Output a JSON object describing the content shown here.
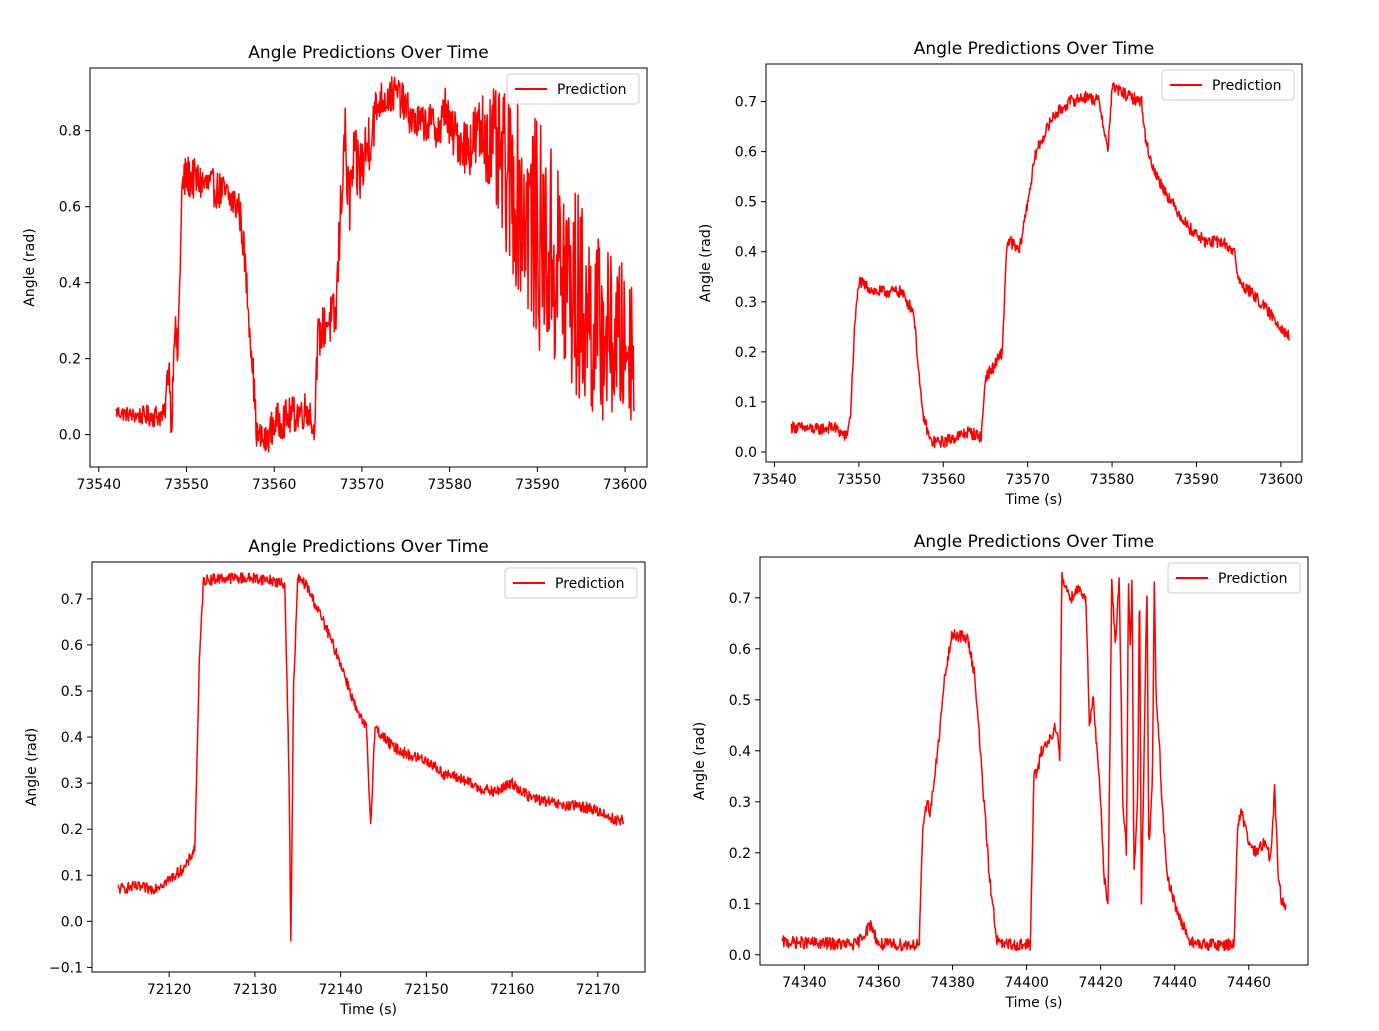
{
  "chart_data": [
    {
      "type": "line",
      "title": "Angle Predictions Over Time",
      "xlabel": "",
      "ylabel": "Angle (rad)",
      "xlim": [
        73539,
        73602.5
      ],
      "ylim": [
        -0.085,
        0.965
      ],
      "xticks": [
        73540,
        73550,
        73560,
        73570,
        73580,
        73590,
        73600
      ],
      "yticks": [
        0.0,
        0.2,
        0.4,
        0.6,
        0.8
      ],
      "ytick_decimals": 1,
      "legend": "top-right",
      "color": "#ff0000",
      "series": [
        {
          "name": "Prediction",
          "x": [
            73542,
            73544,
            73546,
            73547.5,
            73548,
            73548.3,
            73548.6,
            73549,
            73549.5,
            73550,
            73552,
            73554,
            73556,
            73556.5,
            73557.5,
            73558,
            73559,
            73560,
            73562,
            73564,
            73564.5,
            73565,
            73566,
            73567,
            73568,
            73568.5,
            73569,
            73570,
            73571,
            73572,
            73574,
            73576,
            73578,
            73579,
            73579.5,
            73580,
            73582,
            73584,
            73586,
            73588,
            73590,
            73592,
            73594,
            73596,
            73598,
            73600,
            73601
          ],
          "y": [
            0.06,
            0.05,
            0.05,
            0.05,
            0.2,
            0.0,
            0.3,
            0.2,
            0.65,
            0.68,
            0.66,
            0.64,
            0.6,
            0.5,
            0.2,
            0.0,
            -0.02,
            0.03,
            0.05,
            0.07,
            0.0,
            0.25,
            0.3,
            0.3,
            0.8,
            0.6,
            0.7,
            0.7,
            0.8,
            0.88,
            0.9,
            0.82,
            0.82,
            0.8,
            0.88,
            0.8,
            0.76,
            0.8,
            0.7,
            0.62,
            0.53,
            0.45,
            0.38,
            0.3,
            0.26,
            0.24,
            0.24
          ],
          "band": [
            0.02,
            0.02,
            0.03,
            0.03,
            0.05,
            0.04,
            0.06,
            0.05,
            0.06,
            0.06,
            0.05,
            0.05,
            0.05,
            0.05,
            0.05,
            0.04,
            0.04,
            0.05,
            0.05,
            0.05,
            0.04,
            0.06,
            0.06,
            0.08,
            0.1,
            0.1,
            0.1,
            0.1,
            0.09,
            0.05,
            0.05,
            0.05,
            0.05,
            0.06,
            0.06,
            0.06,
            0.08,
            0.12,
            0.2,
            0.26,
            0.3,
            0.3,
            0.3,
            0.26,
            0.23,
            0.21,
            0.2
          ]
        }
      ]
    },
    {
      "type": "line",
      "title": "Angle Predictions Over Time",
      "xlabel": "Time (s)",
      "ylabel": "Angle (rad)",
      "xlim": [
        73539,
        73602.5
      ],
      "ylim": [
        -0.02,
        0.775
      ],
      "xticks": [
        73540,
        73550,
        73560,
        73570,
        73580,
        73590,
        73600
      ],
      "yticks": [
        0.0,
        0.1,
        0.2,
        0.3,
        0.4,
        0.5,
        0.6,
        0.7
      ],
      "ytick_decimals": 1,
      "legend": "top-right",
      "color": "#ff0000",
      "series": [
        {
          "name": "Prediction",
          "x": [
            73542,
            73545,
            73547,
            73548.5,
            73549,
            73549.5,
            73550,
            73552,
            73555,
            73556.5,
            73557.5,
            73558.5,
            73560,
            73563,
            73564.5,
            73565,
            73566,
            73567,
            73567.5,
            73568,
            73569,
            73570,
            73571,
            73573,
            73575,
            73577,
            73578.5,
            73579.5,
            73580,
            73582,
            73583.5,
            73584,
            73585,
            73587,
            73589,
            73591,
            73593,
            73594.5,
            73595,
            73597,
            73599,
            73601
          ],
          "y": [
            0.05,
            0.045,
            0.05,
            0.03,
            0.07,
            0.25,
            0.34,
            0.32,
            0.32,
            0.28,
            0.08,
            0.02,
            0.02,
            0.04,
            0.03,
            0.15,
            0.17,
            0.2,
            0.41,
            0.42,
            0.4,
            0.5,
            0.6,
            0.67,
            0.7,
            0.71,
            0.7,
            0.6,
            0.73,
            0.71,
            0.7,
            0.62,
            0.56,
            0.5,
            0.45,
            0.42,
            0.42,
            0.4,
            0.34,
            0.31,
            0.27,
            0.23
          ]
        }
      ]
    },
    {
      "type": "line",
      "title": "Angle Predictions Over Time",
      "xlabel": "Time (s)",
      "ylabel": "Angle (rad)",
      "xlim": [
        72111,
        72175.5
      ],
      "ylim": [
        -0.11,
        0.78
      ],
      "xticks": [
        72120,
        72130,
        72140,
        72150,
        72160,
        72170
      ],
      "yticks": [
        -0.1,
        0.0,
        0.1,
        0.2,
        0.3,
        0.4,
        0.5,
        0.6,
        0.7
      ],
      "ytick_decimals": 1,
      "legend": "top-right",
      "color": "#ff0000",
      "series": [
        {
          "name": "Prediction",
          "x": [
            72114,
            72116,
            72118,
            72120,
            72122,
            72123,
            72123.5,
            72124,
            72126,
            72130,
            72132,
            72133.5,
            72134,
            72134.2,
            72134.5,
            72135,
            72136,
            72138,
            72140,
            72142,
            72143,
            72143.5,
            72144,
            72146,
            72148,
            72150,
            72152,
            72154,
            72156,
            72158,
            72160,
            72162,
            72164,
            72166,
            72168,
            72170,
            72172,
            72173
          ],
          "y": [
            0.07,
            0.075,
            0.07,
            0.09,
            0.12,
            0.16,
            0.55,
            0.74,
            0.745,
            0.745,
            0.74,
            0.73,
            0.3,
            -0.065,
            0.5,
            0.745,
            0.73,
            0.65,
            0.56,
            0.45,
            0.42,
            0.21,
            0.42,
            0.38,
            0.36,
            0.35,
            0.32,
            0.31,
            0.29,
            0.28,
            0.3,
            0.27,
            0.26,
            0.25,
            0.25,
            0.24,
            0.22,
            0.22
          ]
        }
      ]
    },
    {
      "type": "line",
      "title": "Angle Predictions Over Time",
      "xlabel": "Time (s)",
      "ylabel": "Angle (rad)",
      "xlim": [
        74328,
        74476
      ],
      "ylim": [
        -0.02,
        0.78
      ],
      "xticks": [
        74340,
        74360,
        74380,
        74400,
        74420,
        74440,
        74460
      ],
      "yticks": [
        0.0,
        0.1,
        0.2,
        0.3,
        0.4,
        0.5,
        0.6,
        0.7
      ],
      "ytick_decimals": 1,
      "legend": "top-right",
      "color": "#ff0000",
      "series": [
        {
          "name": "Prediction",
          "x": [
            74334,
            74354,
            74356,
            74358,
            74360,
            74371,
            74372,
            74373,
            74374,
            74376,
            74378,
            74380,
            74384,
            74386,
            74388,
            74390,
            74392,
            74393,
            74401,
            74402,
            74403,
            74404,
            74406,
            74408,
            74409,
            74409.5,
            74410,
            74412,
            74414,
            74416,
            74416.5,
            74417,
            74418,
            74420,
            74421,
            74422,
            74422.5,
            74423,
            74424,
            74425,
            74426,
            74427,
            74427.5,
            74428,
            74428.5,
            74429,
            74430,
            74430.5,
            74431,
            74432,
            74432.5,
            74433,
            74434,
            74434.5,
            74435,
            74436,
            74436.5,
            74437,
            74438,
            74440,
            74442,
            74444,
            74446,
            74448,
            74450,
            74452,
            74454,
            74456,
            74457,
            74458,
            74460,
            74462,
            74464,
            74466,
            74467,
            74468,
            74469,
            74470
          ],
          "y": [
            0.025,
            0.02,
            0.04,
            0.06,
            0.02,
            0.02,
            0.25,
            0.3,
            0.28,
            0.4,
            0.55,
            0.63,
            0.62,
            0.55,
            0.35,
            0.15,
            0.03,
            0.02,
            0.02,
            0.35,
            0.36,
            0.4,
            0.42,
            0.45,
            0.38,
            0.74,
            0.73,
            0.7,
            0.72,
            0.7,
            0.58,
            0.45,
            0.5,
            0.3,
            0.15,
            0.1,
            0.4,
            0.74,
            0.6,
            0.74,
            0.3,
            0.2,
            0.74,
            0.6,
            0.74,
            0.15,
            0.3,
            0.74,
            0.1,
            0.5,
            0.74,
            0.2,
            0.35,
            0.74,
            0.5,
            0.4,
            0.3,
            0.25,
            0.15,
            0.1,
            0.06,
            0.03,
            0.02,
            0.02,
            0.02,
            0.02,
            0.02,
            0.02,
            0.25,
            0.28,
            0.22,
            0.2,
            0.22,
            0.19,
            0.33,
            0.15,
            0.1,
            0.1
          ]
        }
      ]
    }
  ]
}
